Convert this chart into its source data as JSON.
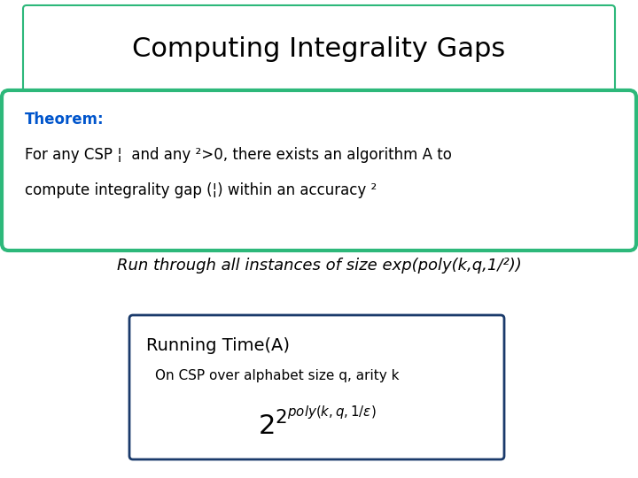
{
  "title": "Computing Integrality Gaps",
  "title_fontsize": 22,
  "title_box_color": "#2db87a",
  "theorem_label": "Theorem:",
  "theorem_label_color": "#0055cc",
  "theorem_text_line1": "For any CSP ¦  and any ²>0, there exists an algorithm A to",
  "theorem_text_line2": "compute integrality gap (¦) within an accuracy ²",
  "theorem_box_color": "#2db87a",
  "italic_text": "Run through all instances of size exp(poly(k,q,1/²))",
  "box2_title": "Running Time(A)",
  "box2_subtitle": "On CSP over alphabet size q, arity k",
  "box2_math": "$2^{2^{poly(k,q,1/\\varepsilon)}}$",
  "box2_border_color": "#1a3a6b",
  "background_color": "#ffffff",
  "fig_width": 7.2,
  "fig_height": 5.4,
  "dpi": 100
}
